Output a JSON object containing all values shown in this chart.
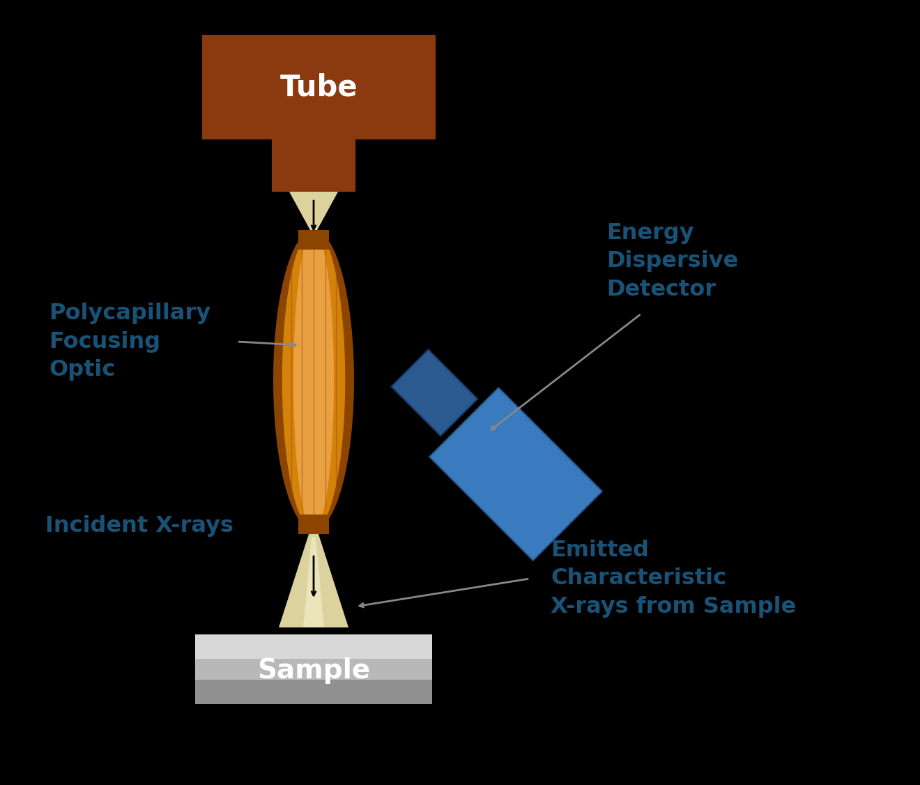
{
  "background_color": "#000000",
  "label_color": "#1a5276",
  "label_fontsize": 23,
  "label_fontweight": "bold",
  "tube_color": "#8B3A10",
  "tube_text": "Tube",
  "tube_text_color": "#ffffff",
  "tube_text_fontsize": 30,
  "optic_color_center": "#E8A040",
  "optic_color_edge": "#8B4500",
  "optic_color_mid": "#D4730A",
  "sample_text": "Sample",
  "sample_text_color": "#ffffff",
  "sample_text_fontsize": 28,
  "detector_color": "#3a7abf",
  "detector_dark": "#2a5a8f",
  "arrow_color": "#888888",
  "beam_color": "#F5EAB0",
  "labels": {
    "polycapillary": "Polycapillary\nFocusing\nOptic",
    "energy": "Energy\nDispersive\nDetector",
    "incident": "Incident X-rays",
    "emitted": "Emitted\nCharacteristic\nX-rays from Sample"
  }
}
